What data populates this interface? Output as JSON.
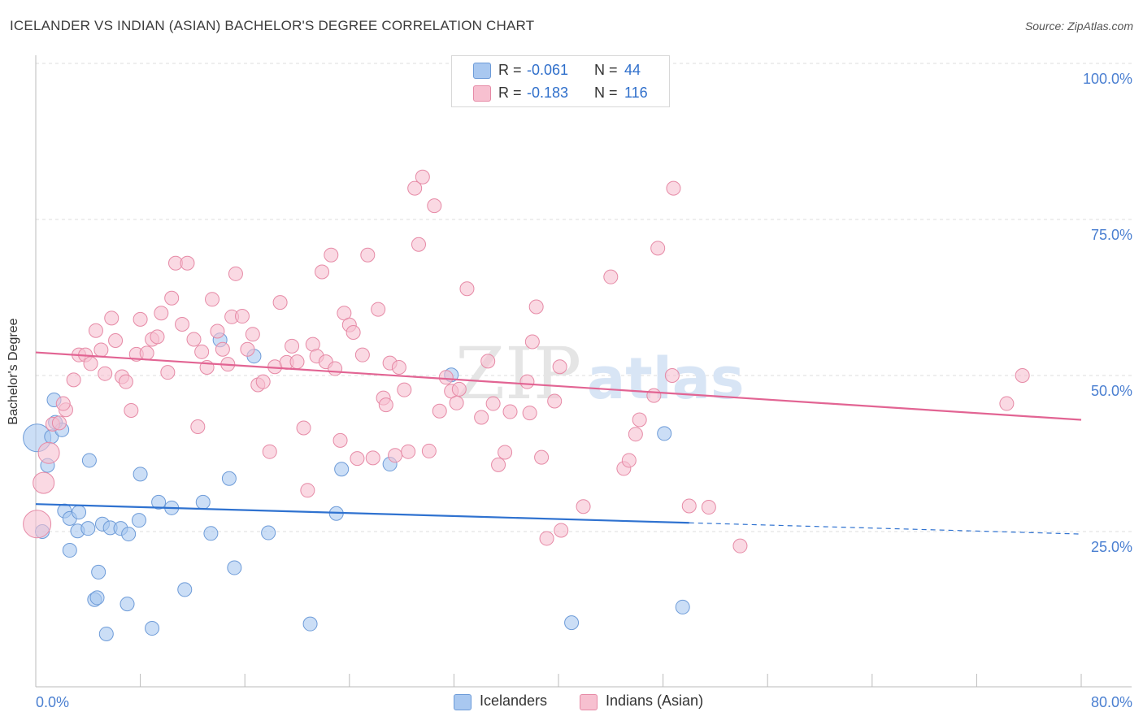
{
  "header": {
    "title": "ICELANDER VS INDIAN (ASIAN) BACHELOR'S DEGREE CORRELATION CHART",
    "source": "Source: ZipAtlas.com"
  },
  "watermark": {
    "zip": "ZIP",
    "atlas": "atlas"
  },
  "stats": [
    {
      "r_label": "R =",
      "r_value": "-0.061",
      "n_label": "N =",
      "n_value": "44",
      "color": "#a9c8f0",
      "border": "#6d9bd8"
    },
    {
      "r_label": "R =",
      "r_value": "-0.183",
      "n_label": "N =",
      "n_value": "116",
      "color": "#f7c0d0",
      "border": "#e68aa6"
    }
  ],
  "legend": [
    {
      "label": "Icelanders",
      "color": "#a9c8f0",
      "border": "#6d9bd8"
    },
    {
      "label": "Indians (Asian)",
      "color": "#f7c0d0",
      "border": "#e68aa6"
    }
  ],
  "chart_data": {
    "type": "scatter",
    "title": "ICELANDER VS INDIAN (ASIAN) BACHELOR'S DEGREE CORRELATION CHART",
    "xlabel": "",
    "ylabel": "Bachelor's Degree",
    "xlim": [
      0,
      80
    ],
    "ylim": [
      0,
      105
    ],
    "x_tick_labels": [
      "0.0%",
      "80.0%"
    ],
    "y_ticks": [
      25,
      50,
      75,
      100
    ],
    "y_tick_labels": [
      "25.0%",
      "50.0%",
      "75.0%",
      "100.0%"
    ],
    "grid": true,
    "series": [
      {
        "name": "Icelanders",
        "color": "#6d9bd8",
        "fill": "#a9c8f0",
        "trend": {
          "color": "#2f72d0",
          "x_start": 0,
          "y_start": 29.4,
          "x_solid_end": 50,
          "y_solid_end": 26.4,
          "x_end": 80,
          "y_end": 24.6
        },
        "points": [
          [
            0.1,
            40.0,
            3
          ],
          [
            1.2,
            40.2,
            1
          ],
          [
            1.4,
            46.1,
            1
          ],
          [
            1.5,
            42.5,
            1
          ],
          [
            2.0,
            41.3,
            1
          ],
          [
            0.9,
            35.6,
            1
          ],
          [
            2.2,
            28.3,
            1
          ],
          [
            2.6,
            27.1,
            1
          ],
          [
            3.3,
            28.1,
            1
          ],
          [
            3.2,
            25.1,
            1
          ],
          [
            4.0,
            25.5,
            1
          ],
          [
            2.6,
            22.0,
            1
          ],
          [
            4.1,
            36.4,
            1
          ],
          [
            5.1,
            26.2,
            1
          ],
          [
            5.7,
            25.6,
            1
          ],
          [
            6.5,
            25.5,
            1
          ],
          [
            7.1,
            24.6,
            1
          ],
          [
            7.9,
            26.8,
            1
          ],
          [
            8.0,
            34.2,
            1
          ],
          [
            9.4,
            29.7,
            1
          ],
          [
            10.4,
            28.8,
            1
          ],
          [
            11.4,
            15.7,
            1
          ],
          [
            12.8,
            29.7,
            1
          ],
          [
            13.4,
            24.7,
            1
          ],
          [
            14.8,
            33.5,
            1
          ],
          [
            15.2,
            19.2,
            1
          ],
          [
            17.8,
            24.8,
            1
          ],
          [
            4.8,
            18.5,
            1
          ],
          [
            4.5,
            14.1,
            1
          ],
          [
            4.7,
            14.4,
            1
          ],
          [
            7.0,
            13.4,
            1
          ],
          [
            5.4,
            8.6,
            1
          ],
          [
            8.9,
            9.5,
            1
          ],
          [
            14.1,
            55.7,
            1
          ],
          [
            16.7,
            53.1,
            1
          ],
          [
            21.0,
            10.2,
            1
          ],
          [
            23.4,
            35.0,
            1
          ],
          [
            23.0,
            27.9,
            1
          ],
          [
            27.1,
            35.8,
            1
          ],
          [
            31.8,
            50.1,
            1
          ],
          [
            41.0,
            10.4,
            1
          ],
          [
            48.1,
            40.7,
            1
          ],
          [
            49.5,
            12.9,
            1
          ],
          [
            0.5,
            25.0,
            1
          ]
        ]
      },
      {
        "name": "Indians (Asian)",
        "color": "#e68aa6",
        "fill": "#f7c0d0",
        "trend": {
          "color": "#e26493",
          "x_start": 0,
          "y_start": 53.7,
          "x_end": 80,
          "y_end": 42.9
        },
        "points": [
          [
            0.1,
            26.2,
            3
          ],
          [
            0.6,
            32.8,
            2
          ],
          [
            1.0,
            37.6,
            2
          ],
          [
            1.3,
            42.2,
            1
          ],
          [
            1.8,
            42.4,
            1
          ],
          [
            2.3,
            44.5,
            1
          ],
          [
            2.1,
            45.5,
            1
          ],
          [
            2.9,
            49.3,
            1
          ],
          [
            3.3,
            53.3,
            1
          ],
          [
            3.8,
            53.3,
            1
          ],
          [
            4.2,
            51.9,
            1
          ],
          [
            4.6,
            57.2,
            1
          ],
          [
            5.0,
            54.1,
            1
          ],
          [
            5.3,
            50.3,
            1
          ],
          [
            5.8,
            59.2,
            1
          ],
          [
            6.1,
            55.6,
            1
          ],
          [
            6.6,
            49.8,
            1
          ],
          [
            6.9,
            49.0,
            1
          ],
          [
            7.3,
            44.4,
            1
          ],
          [
            7.7,
            53.4,
            1
          ],
          [
            8.0,
            59.0,
            1
          ],
          [
            8.5,
            53.6,
            1
          ],
          [
            8.9,
            55.8,
            1
          ],
          [
            9.3,
            56.2,
            1
          ],
          [
            9.6,
            60.0,
            1
          ],
          [
            10.1,
            50.5,
            1
          ],
          [
            10.4,
            62.4,
            1
          ],
          [
            10.7,
            68.0,
            1
          ],
          [
            11.2,
            58.2,
            1
          ],
          [
            11.6,
            68.0,
            1
          ],
          [
            12.1,
            55.8,
            1
          ],
          [
            12.4,
            41.8,
            1
          ],
          [
            12.7,
            53.8,
            1
          ],
          [
            13.1,
            51.3,
            1
          ],
          [
            13.5,
            62.2,
            1
          ],
          [
            13.9,
            57.1,
            1
          ],
          [
            14.3,
            54.2,
            1
          ],
          [
            14.7,
            51.8,
            1
          ],
          [
            15.0,
            59.4,
            1
          ],
          [
            15.3,
            66.3,
            1
          ],
          [
            15.8,
            59.5,
            1
          ],
          [
            16.2,
            54.2,
            1
          ],
          [
            16.6,
            56.6,
            1
          ],
          [
            17.0,
            48.5,
            1
          ],
          [
            17.4,
            49.0,
            1
          ],
          [
            17.9,
            37.8,
            1
          ],
          [
            18.3,
            51.4,
            1
          ],
          [
            18.7,
            61.7,
            1
          ],
          [
            19.2,
            52.1,
            1
          ],
          [
            19.6,
            54.7,
            1
          ],
          [
            20.0,
            52.2,
            1
          ],
          [
            20.5,
            41.6,
            1
          ],
          [
            20.8,
            31.6,
            1
          ],
          [
            21.2,
            55.0,
            1
          ],
          [
            21.5,
            53.1,
            1
          ],
          [
            21.9,
            66.6,
            1
          ],
          [
            22.2,
            52.2,
            1
          ],
          [
            22.6,
            69.3,
            1
          ],
          [
            22.9,
            51.1,
            1
          ],
          [
            23.3,
            39.6,
            1
          ],
          [
            23.6,
            60.0,
            1
          ],
          [
            24.0,
            58.1,
            1
          ],
          [
            24.3,
            56.9,
            1
          ],
          [
            24.6,
            36.7,
            1
          ],
          [
            25.0,
            53.3,
            1
          ],
          [
            25.4,
            69.3,
            1
          ],
          [
            25.8,
            36.8,
            1
          ],
          [
            26.2,
            60.6,
            1
          ],
          [
            26.6,
            46.4,
            1
          ],
          [
            26.8,
            45.3,
            1
          ],
          [
            27.1,
            52.0,
            1
          ],
          [
            27.5,
            37.2,
            1
          ],
          [
            27.8,
            51.3,
            1
          ],
          [
            28.2,
            47.7,
            1
          ],
          [
            28.5,
            37.8,
            1
          ],
          [
            29.0,
            80.0,
            1
          ],
          [
            29.6,
            81.8,
            1
          ],
          [
            29.3,
            71.0,
            1
          ],
          [
            30.1,
            37.9,
            1
          ],
          [
            30.5,
            77.2,
            1
          ],
          [
            30.9,
            44.3,
            1
          ],
          [
            31.4,
            49.7,
            1
          ],
          [
            31.8,
            47.5,
            1
          ],
          [
            32.2,
            45.6,
            1
          ],
          [
            33.0,
            63.9,
            1
          ],
          [
            34.1,
            43.3,
            1
          ],
          [
            34.6,
            52.3,
            1
          ],
          [
            35.0,
            45.5,
            1
          ],
          [
            35.4,
            35.7,
            1
          ],
          [
            35.9,
            37.7,
            1
          ],
          [
            36.3,
            44.2,
            1
          ],
          [
            37.6,
            49.0,
            1
          ],
          [
            38.0,
            55.4,
            1
          ],
          [
            38.3,
            61.0,
            1
          ],
          [
            38.7,
            36.9,
            1
          ],
          [
            37.8,
            44.0,
            1
          ],
          [
            39.1,
            23.9,
            1
          ],
          [
            40.1,
            51.4,
            1
          ],
          [
            39.7,
            45.9,
            1
          ],
          [
            40.2,
            25.2,
            1
          ],
          [
            41.9,
            29.0,
            1
          ],
          [
            44.0,
            65.8,
            1
          ],
          [
            45.0,
            35.1,
            1
          ],
          [
            45.4,
            36.4,
            1
          ],
          [
            45.9,
            40.6,
            1
          ],
          [
            46.2,
            42.9,
            1
          ],
          [
            47.3,
            46.8,
            1
          ],
          [
            47.6,
            70.4,
            1
          ],
          [
            50.0,
            29.1,
            1
          ],
          [
            48.8,
            80.0,
            1
          ],
          [
            51.5,
            28.9,
            1
          ],
          [
            53.9,
            22.7,
            1
          ],
          [
            48.7,
            50.0,
            1
          ],
          [
            74.3,
            45.5,
            1
          ],
          [
            75.5,
            50.0,
            1
          ],
          [
            32.4,
            47.8,
            1
          ]
        ]
      }
    ]
  }
}
